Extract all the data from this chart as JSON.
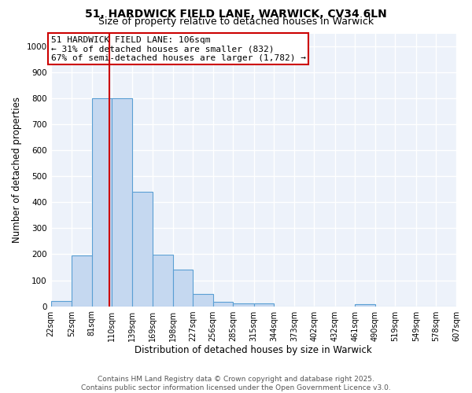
{
  "title": "51, HARDWICK FIELD LANE, WARWICK, CV34 6LN",
  "subtitle": "Size of property relative to detached houses in Warwick",
  "xlabel": "Distribution of detached houses by size in Warwick",
  "ylabel": "Number of detached properties",
  "bin_edges": [
    22,
    52,
    81,
    110,
    139,
    169,
    198,
    227,
    256,
    285,
    315,
    344,
    373,
    402,
    432,
    461,
    490,
    519,
    549,
    578,
    607
  ],
  "bar_heights": [
    20,
    195,
    800,
    800,
    440,
    198,
    140,
    48,
    18,
    10,
    10,
    0,
    0,
    0,
    0,
    8,
    0,
    0,
    0,
    0
  ],
  "bar_color": "#c5d8f0",
  "bar_edge_color": "#5a9fd4",
  "property_size": 106,
  "vline_color": "#cc0000",
  "ylim": [
    0,
    1050
  ],
  "yticks": [
    0,
    100,
    200,
    300,
    400,
    500,
    600,
    700,
    800,
    900,
    1000
  ],
  "annotation_text": "51 HARDWICK FIELD LANE: 106sqm\n← 31% of detached houses are smaller (832)\n67% of semi-detached houses are larger (1,782) →",
  "annotation_box_color": "#ffffff",
  "annotation_box_edge": "#cc0000",
  "footer_line1": "Contains HM Land Registry data © Crown copyright and database right 2025.",
  "footer_line2": "Contains public sector information licensed under the Open Government Licence v3.0.",
  "bg_color": "#edf2fa",
  "grid_color": "#ffffff",
  "title_fontsize": 10,
  "subtitle_fontsize": 9,
  "tick_label_fontsize": 7,
  "axis_label_fontsize": 8.5,
  "annotation_fontsize": 8,
  "footer_fontsize": 6.5
}
